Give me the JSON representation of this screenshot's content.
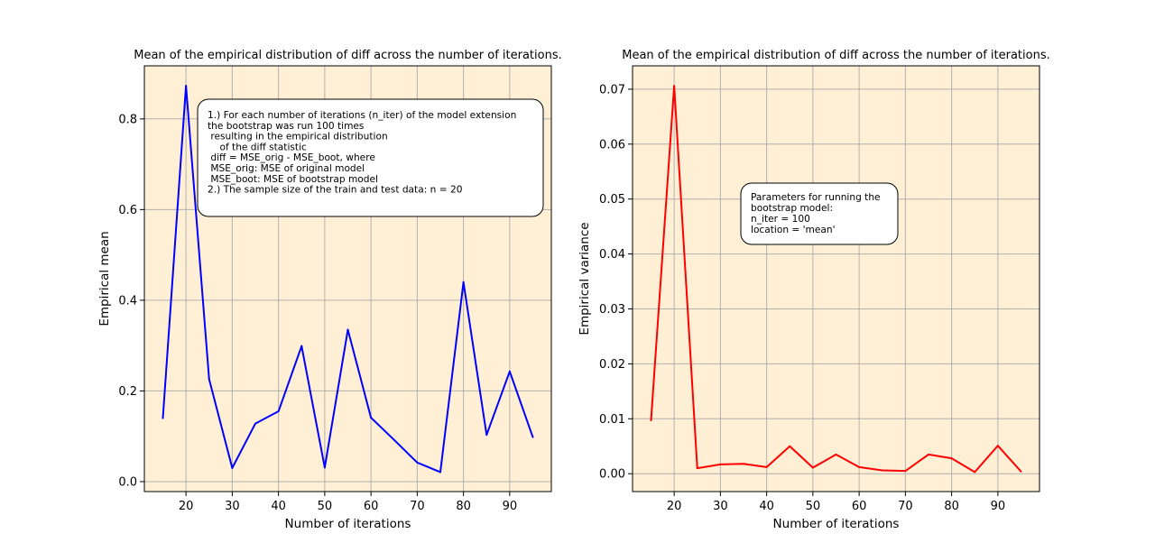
{
  "chart_data": [
    {
      "type": "line",
      "title": "Mean of the empirical distribution of diff across the number of iterations.",
      "xlabel": "Number of iterations",
      "ylabel": "Empirical mean",
      "xlim": [
        11,
        99
      ],
      "ylim": [
        -0.022,
        0.917
      ],
      "xticks": [
        20,
        30,
        40,
        50,
        60,
        70,
        80,
        90
      ],
      "yticks": [
        0.0,
        0.2,
        0.4,
        0.6,
        0.8
      ],
      "ytick_labels": [
        "0.0",
        "0.2",
        "0.4",
        "0.6",
        "0.8"
      ],
      "grid": true,
      "background": "#ffefd5",
      "series": [
        {
          "color": "#0000ff",
          "x": [
            15,
            20,
            25,
            30,
            35,
            40,
            45,
            50,
            55,
            60,
            65,
            70,
            75,
            80,
            85,
            90,
            95
          ],
          "y": [
            0.14,
            0.873,
            0.226,
            0.03,
            0.128,
            0.155,
            0.299,
            0.031,
            0.335,
            0.141,
            0.092,
            0.042,
            0.021,
            0.44,
            0.103,
            0.243,
            0.098
          ]
        }
      ],
      "annotation": [
        "1.) For each number of iterations (n_iter) of the model extension",
        "the bootstrap was run 100 times",
        " resulting in the empirical distribution",
        "    of the diff statistic",
        " diff = MSE_orig - MSE_boot, where",
        " MSE_orig: MSE of original model",
        " MSE_boot: MSE of bootstrap model",
        "",
        "2.) The sample size of the train and test data: n = 20"
      ]
    },
    {
      "type": "line",
      "title": "Mean of the empirical distribution of diff across the number of iterations.",
      "xlabel": "Number of iterations",
      "ylabel": "Empirical variance",
      "xlim": [
        11,
        99
      ],
      "ylim": [
        -0.00325,
        0.07425
      ],
      "xticks": [
        20,
        30,
        40,
        50,
        60,
        70,
        80,
        90
      ],
      "yticks": [
        0.0,
        0.01,
        0.02,
        0.03,
        0.04,
        0.05,
        0.06,
        0.07
      ],
      "ytick_labels": [
        "0.00",
        "0.01",
        "0.02",
        "0.03",
        "0.04",
        "0.05",
        "0.06",
        "0.07"
      ],
      "grid": true,
      "background": "#ffefd5",
      "series": [
        {
          "color": "#ff0000",
          "x": [
            15,
            20,
            25,
            30,
            35,
            40,
            45,
            50,
            55,
            60,
            65,
            70,
            75,
            80,
            85,
            90,
            95
          ],
          "y": [
            0.0097,
            0.0706,
            0.001,
            0.0017,
            0.0018,
            0.0012,
            0.005,
            0.0011,
            0.0035,
            0.0012,
            0.0006,
            0.0005,
            0.0035,
            0.0028,
            0.0003,
            0.0051,
            0.0004
          ]
        }
      ],
      "annotation": [
        "Parameters for running the",
        "bootstrap model:",
        "n_iter = 100",
        "location = 'mean'"
      ]
    }
  ]
}
